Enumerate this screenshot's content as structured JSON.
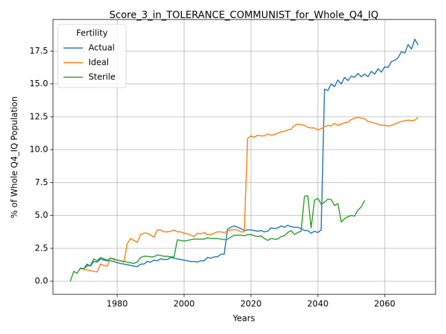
{
  "chart_data": {
    "type": "line",
    "title": "Score_3_in_TOLERANCE_COMMUNIST_for_Whole_Q4_IQ",
    "xlabel": "Years",
    "ylabel": "% of Whole Q4_IQ Population",
    "legend_title": "Fertility",
    "legend_loc": "upper left",
    "grid": true,
    "xlim": [
      1960.8,
      2075.2
    ],
    "ylim": [
      -1.0,
      19.9
    ],
    "xticks": [
      1980,
      2000,
      2020,
      2040,
      2060
    ],
    "yticks": [
      {
        "value": 0,
        "label": "0.0"
      },
      2.5,
      {
        "value": 5,
        "label": "5.0"
      },
      7.5,
      {
        "value": 10,
        "label": "10.0"
      },
      12.5,
      {
        "value": 15,
        "label": "15.0"
      },
      17.5
    ],
    "x": [
      1966,
      1967,
      1968,
      1969,
      1970,
      1971,
      1972,
      1973,
      1974,
      1975,
      1976,
      1977,
      1978,
      1979,
      1980,
      1981,
      1982,
      1983,
      1984,
      1985,
      1986,
      1987,
      1988,
      1989,
      1990,
      1991,
      1992,
      1993,
      1994,
      1995,
      1996,
      1997,
      1998,
      1999,
      2000,
      2001,
      2002,
      2003,
      2004,
      2005,
      2006,
      2007,
      2008,
      2009,
      2010,
      2011,
      2012,
      2013,
      2014,
      2015,
      2016,
      2017,
      2018,
      2019,
      2020,
      2021,
      2022,
      2023,
      2024,
      2025,
      2026,
      2027,
      2028,
      2029,
      2030,
      2031,
      2032,
      2033,
      2034,
      2035,
      2036,
      2037,
      2038,
      2039,
      2040,
      2041,
      2042,
      2043,
      2044,
      2045,
      2046,
      2047,
      2048,
      2049,
      2050,
      2051,
      2052,
      2053,
      2054,
      2055,
      2056,
      2057,
      2058,
      2059,
      2060,
      2061,
      2062,
      2063,
      2064,
      2065,
      2066,
      2067,
      2068,
      2069,
      2070
    ],
    "series": [
      {
        "name": "Actual",
        "color": "#1f77b4",
        "values": [
          null,
          null,
          null,
          0.95,
          0.95,
          1.3,
          1.15,
          1.5,
          1.45,
          1.7,
          1.6,
          1.55,
          1.55,
          1.5,
          1.4,
          1.35,
          1.3,
          1.25,
          1.2,
          1.15,
          1.1,
          1.3,
          1.3,
          1.5,
          1.45,
          1.6,
          1.55,
          1.7,
          1.65,
          1.65,
          1.8,
          1.75,
          1.7,
          1.65,
          1.6,
          1.55,
          1.5,
          1.5,
          1.45,
          1.55,
          1.55,
          1.8,
          1.75,
          1.85,
          1.85,
          2.05,
          2.05,
          3.95,
          4.1,
          4.2,
          4.1,
          4.0,
          3.85,
          3.9,
          3.9,
          3.85,
          3.8,
          3.85,
          3.75,
          3.8,
          4.05,
          4.0,
          4.05,
          4.2,
          4.1,
          4.25,
          4.15,
          4.1,
          4.1,
          4.0,
          3.85,
          3.85,
          3.65,
          3.8,
          3.7,
          3.9,
          14.6,
          14.5,
          15.0,
          14.8,
          15.3,
          15.0,
          15.5,
          15.25,
          15.6,
          15.5,
          15.8,
          15.55,
          15.75,
          15.55,
          15.95,
          15.75,
          16.15,
          15.9,
          16.3,
          16.25,
          16.7,
          16.8,
          17.0,
          17.45,
          17.35,
          18.0,
          17.65,
          18.4,
          17.95
        ]
      },
      {
        "name": "Ideal",
        "color": "#ff7f0e",
        "values": [
          null,
          null,
          null,
          1.0,
          0.9,
          0.85,
          0.8,
          0.75,
          0.7,
          1.3,
          1.2,
          1.15,
          1.75,
          1.65,
          1.6,
          1.55,
          1.45,
          2.85,
          3.25,
          3.1,
          2.95,
          3.55,
          3.65,
          3.65,
          3.5,
          3.35,
          3.9,
          3.9,
          3.75,
          3.75,
          3.8,
          3.9,
          3.75,
          3.75,
          3.65,
          3.6,
          3.5,
          3.4,
          3.65,
          3.6,
          3.7,
          3.55,
          3.55,
          3.65,
          3.75,
          3.75,
          3.7,
          3.8,
          3.9,
          3.9,
          3.9,
          3.75,
          3.75,
          10.85,
          11.05,
          10.95,
          11.1,
          11.05,
          11.05,
          11.2,
          11.1,
          11.15,
          11.25,
          11.35,
          11.4,
          11.5,
          11.55,
          11.85,
          11.95,
          11.9,
          11.85,
          11.7,
          11.65,
          11.65,
          11.5,
          11.6,
          11.75,
          11.85,
          11.8,
          12.0,
          11.85,
          11.95,
          12.05,
          12.1,
          12.3,
          12.4,
          12.45,
          12.4,
          12.35,
          12.15,
          12.1,
          12.0,
          11.95,
          11.85,
          11.85,
          11.8,
          11.85,
          11.95,
          12.05,
          12.15,
          12.2,
          12.25,
          12.2,
          12.25,
          12.45
        ]
      },
      {
        "name": "Sterile",
        "color": "#2ca02c",
        "values": [
          0.0,
          0.75,
          0.6,
          1.0,
          0.95,
          1.15,
          1.2,
          1.7,
          1.55,
          1.8,
          1.7,
          1.6,
          1.75,
          1.7,
          1.6,
          1.55,
          1.5,
          1.45,
          1.4,
          1.35,
          1.45,
          1.8,
          1.9,
          1.9,
          1.85,
          1.85,
          2.0,
          1.95,
          1.9,
          1.9,
          1.85,
          1.85,
          3.15,
          3.1,
          3.05,
          3.1,
          3.15,
          3.2,
          3.2,
          3.2,
          3.2,
          3.3,
          3.25,
          3.25,
          3.25,
          3.2,
          3.15,
          3.2,
          3.35,
          3.5,
          3.5,
          3.5,
          3.45,
          3.55,
          3.55,
          3.45,
          3.4,
          3.45,
          3.25,
          3.1,
          3.25,
          3.2,
          3.2,
          3.4,
          3.45,
          3.7,
          3.85,
          3.55,
          3.7,
          3.8,
          6.45,
          6.5,
          4.05,
          6.15,
          6.3,
          5.85,
          6.0,
          6.25,
          6.2,
          5.75,
          5.9,
          4.5,
          4.75,
          4.9,
          5.0,
          4.95,
          5.4,
          5.65,
          6.15,
          null,
          null,
          null,
          null,
          null,
          null,
          null,
          null,
          null,
          null,
          null,
          null,
          null,
          null,
          null,
          null
        ]
      }
    ]
  }
}
